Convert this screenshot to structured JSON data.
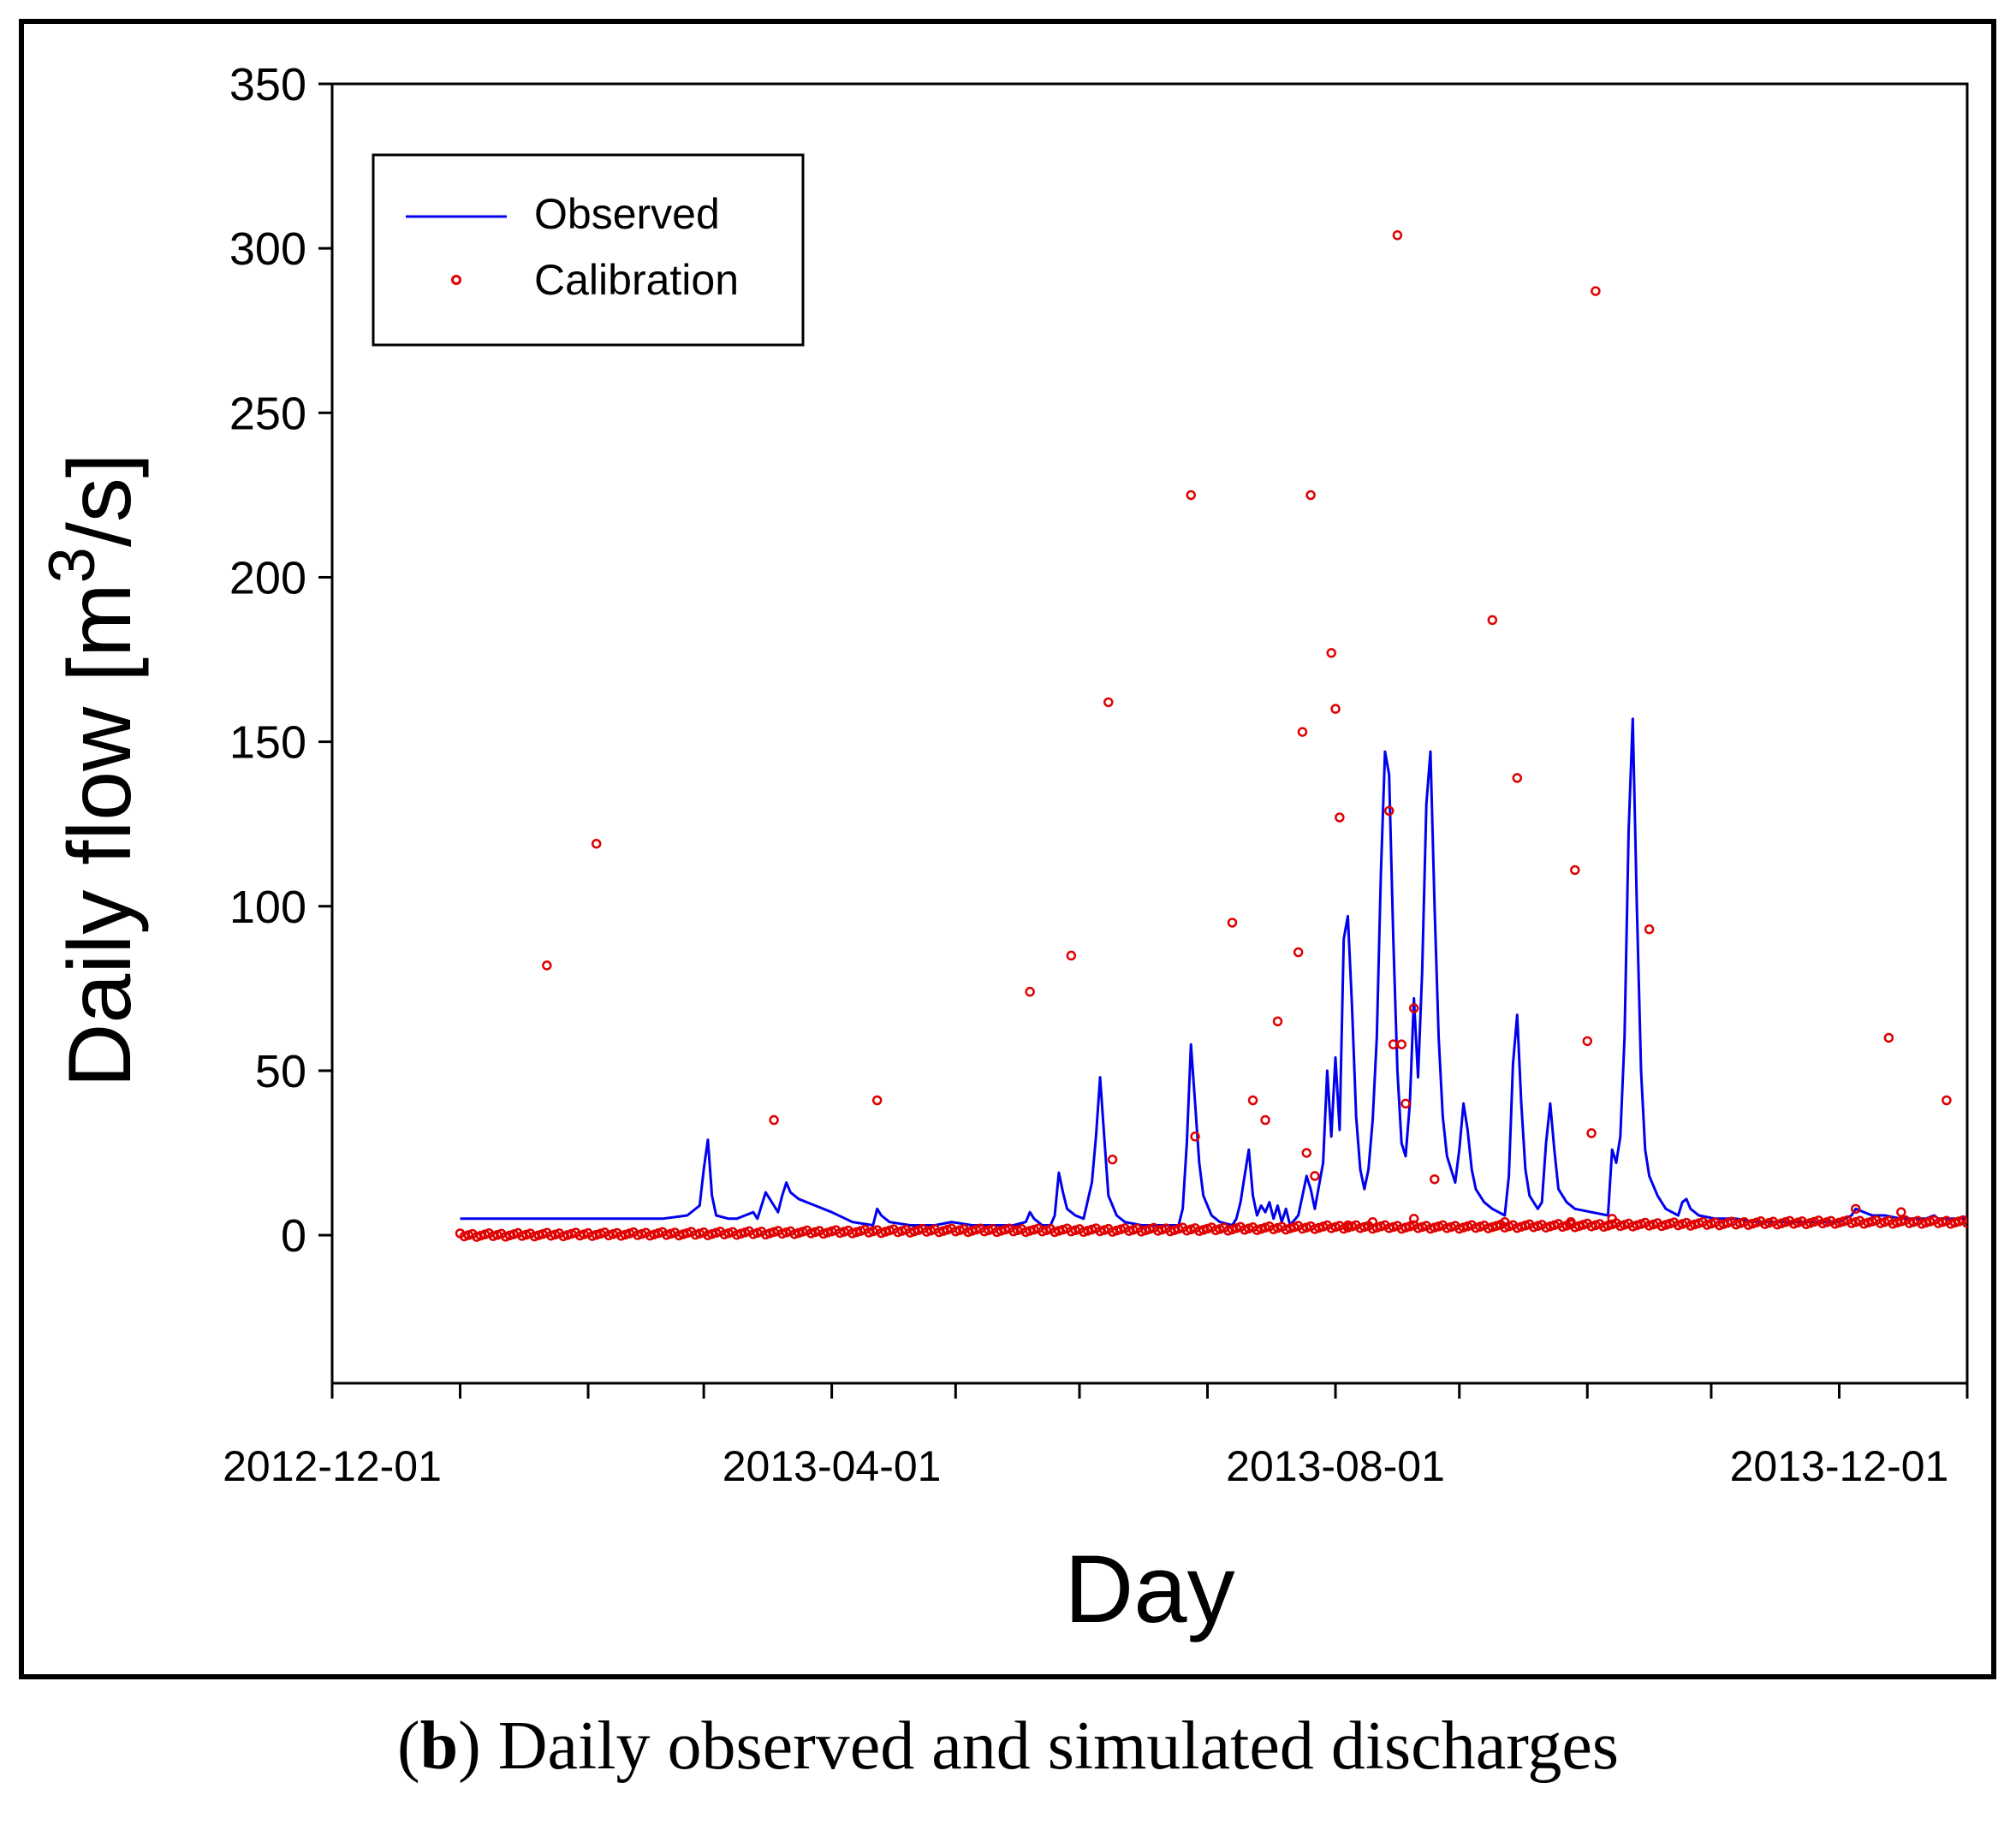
{
  "chart_data": {
    "type": "line",
    "title": "",
    "xlabel": "Day",
    "ylabel": "Daily flow [m³/s]",
    "ylabel_parts": {
      "prefix": "Daily flow [m",
      "superscript": "3",
      "suffix": "/s]"
    },
    "ylim": [
      -45,
      350
    ],
    "xlim_days": [
      0,
      396
    ],
    "yticks": [
      0,
      50,
      100,
      150,
      200,
      250,
      300,
      350
    ],
    "xtick_labels": [
      {
        "label": "2012-12-01",
        "day": 0
      },
      {
        "label": "2013-04-01",
        "day": 121
      },
      {
        "label": "2013-08-01",
        "day": 243
      },
      {
        "label": "2013-12-01",
        "day": 365
      }
    ],
    "x_minor_tick_days": [
      31,
      62,
      90,
      151,
      181,
      212,
      273,
      304,
      334,
      396
    ],
    "legend": {
      "position": "top-left",
      "entries": [
        "Observed",
        "Calibration"
      ]
    },
    "series": [
      {
        "name": "Observed",
        "style": "line",
        "color": "#0000ee",
        "points": [
          [
            31,
            5
          ],
          [
            80,
            5
          ],
          [
            86,
            6
          ],
          [
            89,
            9
          ],
          [
            90,
            20
          ],
          [
            91,
            29
          ],
          [
            92,
            12
          ],
          [
            93,
            6
          ],
          [
            96,
            5
          ],
          [
            98,
            5
          ],
          [
            100,
            6
          ],
          [
            102,
            7
          ],
          [
            103,
            5
          ],
          [
            104,
            9
          ],
          [
            105,
            13
          ],
          [
            106,
            11
          ],
          [
            107,
            9
          ],
          [
            108,
            7
          ],
          [
            109,
            12
          ],
          [
            110,
            16
          ],
          [
            111,
            13
          ],
          [
            113,
            11
          ],
          [
            117,
            9
          ],
          [
            121,
            7
          ],
          [
            126,
            4
          ],
          [
            131,
            3
          ],
          [
            132,
            8
          ],
          [
            133,
            6
          ],
          [
            135,
            4
          ],
          [
            140,
            3
          ],
          [
            146,
            3
          ],
          [
            150,
            4
          ],
          [
            155,
            3
          ],
          [
            160,
            3
          ],
          [
            165,
            3
          ],
          [
            168,
            4
          ],
          [
            169,
            7
          ],
          [
            170,
            5
          ],
          [
            172,
            3
          ],
          [
            174,
            3
          ],
          [
            175,
            6
          ],
          [
            176,
            19
          ],
          [
            177,
            13
          ],
          [
            178,
            8
          ],
          [
            180,
            6
          ],
          [
            182,
            5
          ],
          [
            184,
            16
          ],
          [
            185,
            30
          ],
          [
            186,
            48
          ],
          [
            187,
            30
          ],
          [
            188,
            12
          ],
          [
            190,
            6
          ],
          [
            192,
            4
          ],
          [
            196,
            3
          ],
          [
            201,
            3
          ],
          [
            205,
            3
          ],
          [
            206,
            8
          ],
          [
            207,
            28
          ],
          [
            208,
            58
          ],
          [
            209,
            40
          ],
          [
            210,
            22
          ],
          [
            211,
            12
          ],
          [
            213,
            6
          ],
          [
            215,
            4
          ],
          [
            218,
            3
          ],
          [
            219,
            5
          ],
          [
            220,
            10
          ],
          [
            221,
            18
          ],
          [
            222,
            26
          ],
          [
            223,
            12
          ],
          [
            224,
            6
          ],
          [
            225,
            9
          ],
          [
            226,
            7
          ],
          [
            227,
            10
          ],
          [
            228,
            5
          ],
          [
            229,
            9
          ],
          [
            230,
            4
          ],
          [
            231,
            8
          ],
          [
            232,
            3
          ],
          [
            234,
            6
          ],
          [
            235,
            12
          ],
          [
            236,
            18
          ],
          [
            237,
            14
          ],
          [
            238,
            8
          ],
          [
            240,
            22
          ],
          [
            241,
            50
          ],
          [
            242,
            30
          ],
          [
            243,
            54
          ],
          [
            244,
            32
          ],
          [
            245,
            90
          ],
          [
            246,
            97
          ],
          [
            247,
            70
          ],
          [
            248,
            36
          ],
          [
            249,
            20
          ],
          [
            250,
            14
          ],
          [
            251,
            20
          ],
          [
            252,
            35
          ],
          [
            253,
            60
          ],
          [
            254,
            110
          ],
          [
            255,
            147
          ],
          [
            256,
            140
          ],
          [
            257,
            90
          ],
          [
            258,
            50
          ],
          [
            259,
            28
          ],
          [
            260,
            24
          ],
          [
            261,
            40
          ],
          [
            262,
            72
          ],
          [
            263,
            48
          ],
          [
            264,
            80
          ],
          [
            265,
            131
          ],
          [
            266,
            147
          ],
          [
            267,
            100
          ],
          [
            268,
            60
          ],
          [
            269,
            36
          ],
          [
            270,
            24
          ],
          [
            271,
            20
          ],
          [
            272,
            16
          ],
          [
            273,
            26
          ],
          [
            274,
            40
          ],
          [
            275,
            32
          ],
          [
            276,
            20
          ],
          [
            277,
            14
          ],
          [
            279,
            10
          ],
          [
            281,
            8
          ],
          [
            284,
            6
          ],
          [
            285,
            18
          ],
          [
            286,
            52
          ],
          [
            287,
            67
          ],
          [
            288,
            40
          ],
          [
            289,
            20
          ],
          [
            290,
            12
          ],
          [
            292,
            8
          ],
          [
            293,
            10
          ],
          [
            294,
            28
          ],
          [
            295,
            40
          ],
          [
            296,
            26
          ],
          [
            297,
            14
          ],
          [
            299,
            10
          ],
          [
            301,
            8
          ],
          [
            305,
            7
          ],
          [
            309,
            6
          ],
          [
            310,
            26
          ],
          [
            311,
            22
          ],
          [
            312,
            30
          ],
          [
            313,
            60
          ],
          [
            314,
            123
          ],
          [
            315,
            157
          ],
          [
            316,
            100
          ],
          [
            317,
            50
          ],
          [
            318,
            26
          ],
          [
            319,
            18
          ],
          [
            321,
            12
          ],
          [
            323,
            8
          ],
          [
            326,
            6
          ],
          [
            327,
            10
          ],
          [
            328,
            11
          ],
          [
            329,
            8
          ],
          [
            331,
            6
          ],
          [
            335,
            5
          ],
          [
            340,
            5
          ],
          [
            345,
            4
          ],
          [
            350,
            4
          ],
          [
            355,
            4
          ],
          [
            360,
            4
          ],
          [
            365,
            4
          ],
          [
            368,
            6
          ],
          [
            369,
            8
          ],
          [
            371,
            7
          ],
          [
            373,
            6
          ],
          [
            376,
            6
          ],
          [
            380,
            5
          ],
          [
            386,
            5
          ],
          [
            388,
            6
          ],
          [
            389,
            5
          ],
          [
            392,
            5
          ],
          [
            396,
            5
          ]
        ]
      },
      {
        "name": "Calibration",
        "style": "scatter",
        "color": "#e00000",
        "base_profile": [
          [
            31,
            0
          ],
          [
            90,
            0.5
          ],
          [
            121,
            1
          ],
          [
            150,
            1.5
          ],
          [
            181,
            1.5
          ],
          [
            212,
            1.8
          ],
          [
            243,
            2.5
          ],
          [
            273,
            2.5
          ],
          [
            304,
            3
          ],
          [
            334,
            3.5
          ],
          [
            365,
            4
          ],
          [
            396,
            4
          ]
        ],
        "points": [
          [
            52,
            82
          ],
          [
            64,
            119
          ],
          [
            107,
            35
          ],
          [
            132,
            41
          ],
          [
            169,
            74
          ],
          [
            179,
            85
          ],
          [
            188,
            162
          ],
          [
            189,
            23
          ],
          [
            208,
            225
          ],
          [
            209,
            30
          ],
          [
            218,
            95
          ],
          [
            223,
            41
          ],
          [
            226,
            35
          ],
          [
            229,
            65
          ],
          [
            234,
            86
          ],
          [
            235,
            153
          ],
          [
            236,
            25
          ],
          [
            237,
            225
          ],
          [
            238,
            18
          ],
          [
            242,
            177
          ],
          [
            243,
            160
          ],
          [
            244,
            127
          ],
          [
            256,
            129
          ],
          [
            257,
            58
          ],
          [
            258,
            304
          ],
          [
            259,
            58
          ],
          [
            260,
            40
          ],
          [
            262,
            69
          ],
          [
            267,
            17
          ],
          [
            281,
            187
          ],
          [
            287,
            139
          ],
          [
            301,
            111
          ],
          [
            304,
            59
          ],
          [
            305,
            31
          ],
          [
            306,
            287
          ],
          [
            319,
            93
          ],
          [
            377,
            60
          ],
          [
            391,
            41
          ],
          [
            246,
            3
          ],
          [
            252,
            4
          ],
          [
            262,
            5
          ],
          [
            284,
            4
          ],
          [
            300,
            4
          ],
          [
            310,
            5
          ],
          [
            369,
            8
          ],
          [
            380,
            7
          ]
        ]
      }
    ]
  },
  "caption": {
    "label": "b",
    "text": "Daily observed and simulated discharges"
  }
}
